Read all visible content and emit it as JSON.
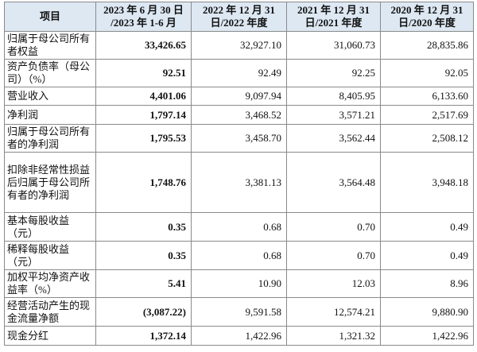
{
  "table": {
    "header": [
      "项目",
      "2023 年 6 月 30 日\n/2023 年 1-6 月",
      "2022 年 12 月 31\n日/2022 年度",
      "2021 年 12 月 31\n日/2021 年度",
      "2020 年 12 月 31\n日/2020 年度"
    ],
    "rows": [
      [
        "归属于母公司所有者权益",
        "33,426.65",
        "32,927.10",
        "31,060.73",
        "28,835.86"
      ],
      [
        "资产负债率（母公司）（%）",
        "92.51",
        "92.49",
        "92.25",
        "92.05"
      ],
      [
        "营业收入",
        "4,401.06",
        "9,097.94",
        "8,405.95",
        "6,133.60"
      ],
      [
        "净利润",
        "1,797.14",
        "3,468.52",
        "3,571.21",
        "2,517.69"
      ],
      [
        "归属于母公司所有者的净利润",
        "1,795.53",
        "3,458.70",
        "3,562.44",
        "2,508.12"
      ],
      [
        "扣除非经常性损益后归属于母公司所有者的净利润",
        "1,748.76",
        "3,381.13",
        "3,564.48",
        "3,948.18"
      ],
      [
        "基本每股收益（元）",
        "0.35",
        "0.68",
        "0.70",
        "0.49"
      ],
      [
        "稀释每股收益（元）",
        "0.35",
        "0.68",
        "0.70",
        "0.49"
      ],
      [
        "加权平均净资产收益率（%）",
        "5.41",
        "10.90",
        "12.03",
        "8.96"
      ],
      [
        "经营活动产生的现金流量净额",
        "(3,087.22)",
        "9,591.58",
        "12,574.21",
        "9,880.90"
      ],
      [
        "现金分红",
        "1,372.14",
        "1,422.96",
        "1,321.32",
        "1,422.96"
      ]
    ]
  }
}
